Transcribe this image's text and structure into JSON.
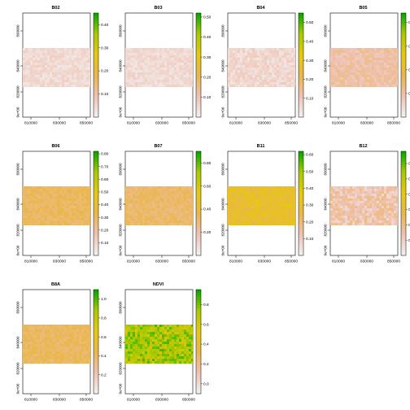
{
  "figure": {
    "colors": {
      "ramp": [
        "#f2f2f2",
        "#efc2b3",
        "#eab64b",
        "#e6c80f",
        "#a8c900",
        "#00a600"
      ],
      "frame": "#000000",
      "background": "#ffffff"
    }
  },
  "chart_data": [
    {
      "type": "heatmap",
      "title": "B02",
      "raster": "mostly low values (light pink)",
      "legend_ticks": [
        "0.10",
        "0.20",
        "0.30",
        "0.40"
      ],
      "colorbar_max": 0.45
    },
    {
      "type": "heatmap",
      "title": "B03",
      "raster": "mostly low values (light pink)",
      "legend_ticks": [
        "0.10",
        "0.20",
        "0.30",
        "0.40",
        "0.50"
      ],
      "colorbar_max": 0.52
    },
    {
      "type": "heatmap",
      "title": "B04",
      "raster": "mostly low values (light pink)",
      "legend_ticks": [
        "0.10",
        "0.20",
        "0.30",
        "0.40",
        "0.50"
      ],
      "colorbar_max": 0.55
    },
    {
      "type": "heatmap",
      "title": "B05",
      "raster": "low-mid values (salmon)",
      "legend_ticks": [
        "0.10",
        "0.20",
        "0.30",
        "0.40"
      ],
      "colorbar_max": 0.44
    },
    {
      "type": "heatmap",
      "title": "B06",
      "raster": "mid values (orange)",
      "legend_ticks": [
        "0.10",
        "0.20",
        "0.30",
        "0.40",
        "0.50",
        "0.60",
        "0.70",
        "0.80"
      ],
      "colorbar_max": 0.82
    },
    {
      "type": "heatmap",
      "title": "B07",
      "raster": "mid values (orange)",
      "legend_ticks": [
        "0.20",
        "0.40",
        "0.60",
        "0.80"
      ],
      "colorbar_max": 0.9
    },
    {
      "type": "heatmap",
      "title": "B11",
      "raster": "mid values (orange-yellow)",
      "legend_ticks": [
        "0.10",
        "0.20",
        "0.30",
        "0.40",
        "0.50",
        "0.60"
      ],
      "colorbar_max": 0.62
    },
    {
      "type": "heatmap",
      "title": "B12",
      "raster": "low-mid values (salmon)",
      "legend_ticks": [
        "0.10",
        "0.20",
        "0.30",
        "0.40",
        "0.50",
        "0.60"
      ],
      "colorbar_max": 0.68
    },
    {
      "type": "heatmap",
      "title": "B8A",
      "raster": "mid values (orange)",
      "legend_ticks": [
        "0.2",
        "0.4",
        "0.6",
        "0.8",
        "1.0"
      ],
      "colorbar_max": 1.1
    },
    {
      "type": "heatmap",
      "title": "NDVI",
      "raster": "mostly high values (green) with yellow patches",
      "legend_ticks": [
        "0.0",
        "0.2",
        "0.4",
        "0.6",
        "0.8"
      ],
      "colorbar_min": -0.1,
      "colorbar_max": 0.95
    }
  ],
  "shared_axes": {
    "x_ticks": [
      "810000",
      "830000",
      "850000"
    ],
    "y_ticks": [
      "890000",
      "840000",
      "820000"
    ],
    "y_unit_label": "0e+00"
  }
}
